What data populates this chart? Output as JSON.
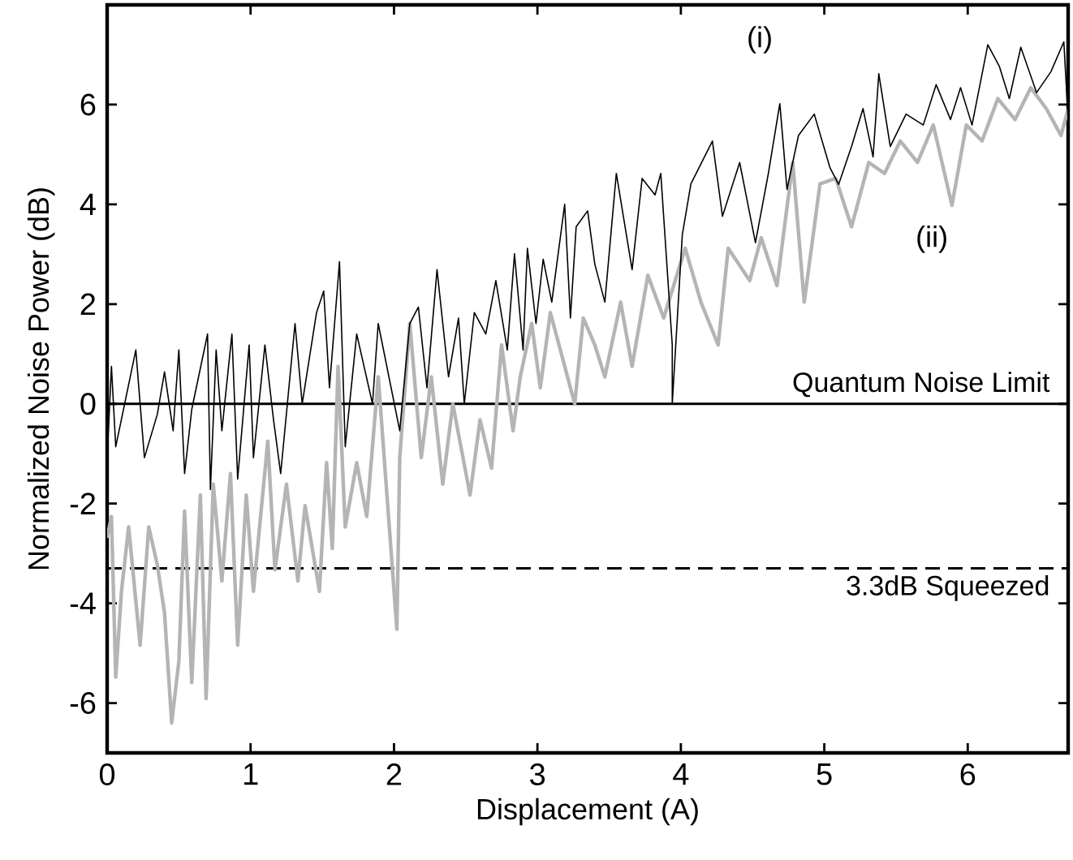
{
  "chart_data": {
    "type": "line",
    "xlabel": "Displacement (A)",
    "ylabel": "Normalized Noise Power (dB)",
    "xlim": [
      0,
      6.7
    ],
    "ylim": [
      -7,
      8
    ],
    "xticks": [
      0,
      1,
      2,
      3,
      4,
      5,
      6
    ],
    "yticks": [
      -6,
      -4,
      -2,
      0,
      2,
      4,
      6
    ],
    "series": [
      {
        "name": "(i)",
        "color": "#000000",
        "x": [
          0.0,
          0.03,
          0.06,
          0.2,
          0.26,
          0.35,
          0.4,
          0.46,
          0.5,
          0.54,
          0.59,
          0.7,
          0.72,
          0.76,
          0.8,
          0.87,
          0.91,
          0.99,
          1.02,
          1.1,
          1.16,
          1.21,
          1.31,
          1.36,
          1.46,
          1.51,
          1.55,
          1.62,
          1.66,
          1.74,
          1.85,
          1.89,
          2.04,
          2.11,
          2.17,
          2.23,
          2.3,
          2.38,
          2.45,
          2.49,
          2.56,
          2.64,
          2.71,
          2.79,
          2.84,
          2.9,
          2.93,
          2.99,
          3.04,
          3.1,
          3.19,
          3.23,
          3.27,
          3.35,
          3.4,
          3.47,
          3.55,
          3.66,
          3.73,
          3.82,
          3.86,
          3.94,
          3.94,
          4.01,
          4.07,
          4.22,
          4.29,
          4.41,
          4.52,
          4.61,
          4.69,
          4.74,
          4.82,
          4.93,
          5.04,
          5.1,
          5.19,
          5.27,
          5.34,
          5.38,
          5.46,
          5.57,
          5.69,
          5.78,
          5.88,
          5.95,
          6.03,
          6.14,
          6.22,
          6.29,
          6.37,
          6.48,
          6.58,
          6.67,
          6.7
        ],
        "values": [
          -1.08,
          0.75,
          -0.86,
          1.08,
          -1.08,
          -0.21,
          0.64,
          -0.54,
          1.08,
          -1.4,
          -0.11,
          1.4,
          -1.72,
          1.08,
          -0.54,
          1.4,
          -1.51,
          1.18,
          -1.08,
          1.18,
          -0.32,
          -1.4,
          1.61,
          0.0,
          1.83,
          2.26,
          0.32,
          2.85,
          -0.86,
          1.4,
          0.0,
          1.61,
          -0.54,
          1.61,
          1.94,
          0.32,
          2.69,
          0.54,
          1.72,
          0.0,
          1.83,
          1.4,
          2.47,
          1.08,
          3.01,
          1.08,
          3.12,
          1.61,
          2.9,
          2.04,
          4.0,
          1.72,
          3.55,
          3.87,
          2.8,
          2.04,
          4.62,
          2.69,
          4.52,
          4.19,
          4.62,
          1.18,
          0.0,
          3.39,
          4.41,
          5.27,
          3.76,
          4.84,
          3.23,
          4.62,
          6.02,
          4.3,
          5.38,
          5.81,
          4.73,
          4.4,
          5.16,
          5.92,
          4.95,
          6.62,
          5.16,
          5.81,
          5.59,
          6.4,
          5.7,
          6.34,
          5.59,
          7.2,
          6.77,
          6.12,
          7.15,
          6.24,
          6.66,
          7.26,
          5.7
        ]
      },
      {
        "name": "(ii)",
        "color": "#b4b4b4",
        "x": [
          0.0,
          0.03,
          0.06,
          0.1,
          0.15,
          0.23,
          0.29,
          0.35,
          0.4,
          0.45,
          0.5,
          0.54,
          0.59,
          0.65,
          0.69,
          0.74,
          0.8,
          0.86,
          0.91,
          0.97,
          1.02,
          1.12,
          1.17,
          1.25,
          1.33,
          1.38,
          1.48,
          1.53,
          1.57,
          1.61,
          1.66,
          1.74,
          1.81,
          1.89,
          2.02,
          2.04,
          2.11,
          2.19,
          2.26,
          2.34,
          2.41,
          2.53,
          2.6,
          2.68,
          2.75,
          2.83,
          2.88,
          2.96,
          3.02,
          3.09,
          3.17,
          3.26,
          3.32,
          3.4,
          3.47,
          3.58,
          3.66,
          3.77,
          3.88,
          4.03,
          4.14,
          4.26,
          4.33,
          4.48,
          4.56,
          4.67,
          4.78,
          4.86,
          4.97,
          5.08,
          5.19,
          5.31,
          5.42,
          5.53,
          5.65,
          5.76,
          5.89,
          5.99,
          6.1,
          6.21,
          6.33,
          6.44,
          6.55,
          6.65,
          6.7
        ],
        "values": [
          -2.69,
          -2.26,
          -5.48,
          -3.76,
          -2.47,
          -4.84,
          -2.47,
          -3.23,
          -4.19,
          -6.4,
          -5.16,
          -2.15,
          -5.59,
          -1.83,
          -5.91,
          -1.61,
          -3.55,
          -1.4,
          -4.84,
          -1.83,
          -3.76,
          -0.75,
          -3.33,
          -1.61,
          -3.55,
          -2.04,
          -3.76,
          -1.18,
          -2.9,
          0.75,
          -2.47,
          -1.18,
          -2.26,
          0.54,
          -4.52,
          -1.08,
          1.61,
          -1.08,
          0.54,
          -1.61,
          0.0,
          -1.83,
          -0.32,
          -1.29,
          1.18,
          -0.54,
          0.54,
          1.61,
          0.32,
          1.83,
          0.97,
          0.0,
          1.72,
          1.18,
          0.54,
          2.04,
          0.75,
          2.58,
          1.72,
          3.12,
          2.04,
          1.18,
          3.12,
          2.47,
          3.33,
          2.37,
          4.84,
          2.04,
          4.41,
          4.52,
          3.55,
          4.84,
          4.62,
          5.27,
          4.84,
          5.59,
          3.98,
          5.59,
          5.27,
          6.12,
          5.7,
          6.34,
          5.91,
          5.38,
          5.91
        ]
      }
    ],
    "ref_lines": [
      {
        "axis": "y",
        "value": 0,
        "label": "Quantum Noise Limit",
        "color": "#000000",
        "line_style": "solid"
      },
      {
        "axis": "y",
        "value": -3.3,
        "label": "3.3dB Squeezed",
        "color": "#000000",
        "line_style": "dashed"
      }
    ]
  }
}
